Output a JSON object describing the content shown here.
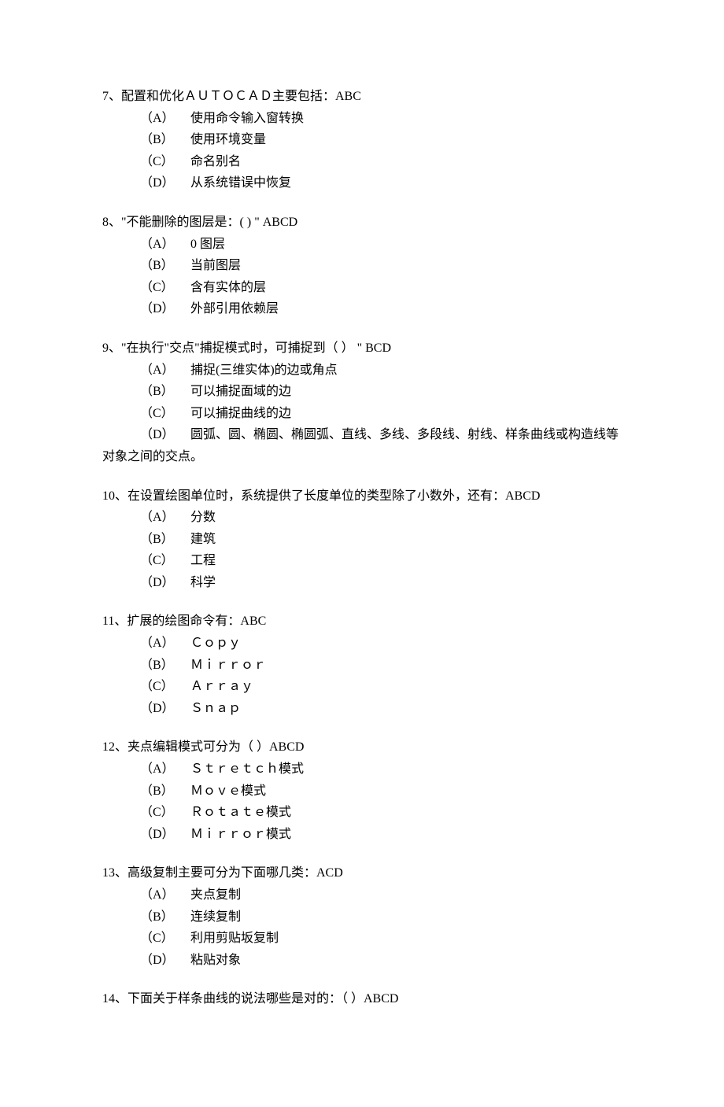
{
  "questions": [
    {
      "number": "7",
      "text": "、配置和优化ＡＵＴＯＣＡＤ主要包括：ABC",
      "options": [
        {
          "label": "（A）",
          "text": "使用命令输入窗转换"
        },
        {
          "label": "（B）",
          "text": "使用环境变量"
        },
        {
          "label": "（C）",
          "text": "命名别名"
        },
        {
          "label": "（D）",
          "text": "从系统错误中恢复"
        }
      ]
    },
    {
      "number": "8",
      "text": "、\"不能删除的图层是：(   ) \" ABCD",
      "options": [
        {
          "label": "（A）",
          "text": "0 图层"
        },
        {
          "label": "（B）",
          "text": "当前图层"
        },
        {
          "label": "（C）",
          "text": "含有实体的层"
        },
        {
          "label": "（D）",
          "text": "外部引用依赖层"
        }
      ]
    },
    {
      "number": "9",
      "text": "、\"在执行\"交点\"捕捉模式时，可捕捉到（ ） \" BCD",
      "options": [
        {
          "label": "（A）",
          "text": "捕捉(三维实体)的边或角点"
        },
        {
          "label": "（B）",
          "text": "可以捕捉面域的边"
        },
        {
          "label": "（C）",
          "text": "可以捕捉曲线的边"
        },
        {
          "label": "（D）",
          "text": "圆弧、圆、椭圆、椭圆弧、直线、多线、多段线、射线、样条曲线或构造线等",
          "continuation": "对象之间的交点。"
        }
      ]
    },
    {
      "number": "10",
      "text": "、在设置绘图单位时，系统提供了长度单位的类型除了小数外，还有：ABCD",
      "options": [
        {
          "label": "（A）",
          "text": "分数"
        },
        {
          "label": "（B）",
          "text": "建筑"
        },
        {
          "label": "（C）",
          "text": "工程"
        },
        {
          "label": "（D）",
          "text": "科学"
        }
      ]
    },
    {
      "number": "11",
      "text": "、扩展的绘图命令有：ABC",
      "options": [
        {
          "label": "（A）",
          "text": "Ｃｏｐｙ"
        },
        {
          "label": "（B）",
          "text": "Ｍｉｒｒｏｒ"
        },
        {
          "label": "（C）",
          "text": "Ａｒｒａｙ"
        },
        {
          "label": "（D）",
          "text": "Ｓｎａｐ"
        }
      ]
    },
    {
      "number": "12",
      "text": "、夹点编辑模式可分为（ ）ABCD",
      "options": [
        {
          "label": "（A）",
          "text": "Ｓｔｒｅｔｃｈ模式"
        },
        {
          "label": "（B）",
          "text": "Ｍｏｖｅ模式"
        },
        {
          "label": "（C）",
          "text": "Ｒｏｔａｔｅ模式"
        },
        {
          "label": "（D）",
          "text": "Ｍｉｒｒｏｒ模式"
        }
      ]
    },
    {
      "number": "13",
      "text": "、高级复制主要可分为下面哪几类：ACD",
      "options": [
        {
          "label": "（A）",
          "text": "夹点复制"
        },
        {
          "label": "（B）",
          "text": "连续复制"
        },
        {
          "label": "（C）",
          "text": "利用剪贴坂复制"
        },
        {
          "label": "（D）",
          "text": "粘贴对象"
        }
      ]
    },
    {
      "number": "14",
      "text": "、下面关于样条曲线的说法哪些是对的：（ ）ABCD",
      "options": []
    }
  ]
}
